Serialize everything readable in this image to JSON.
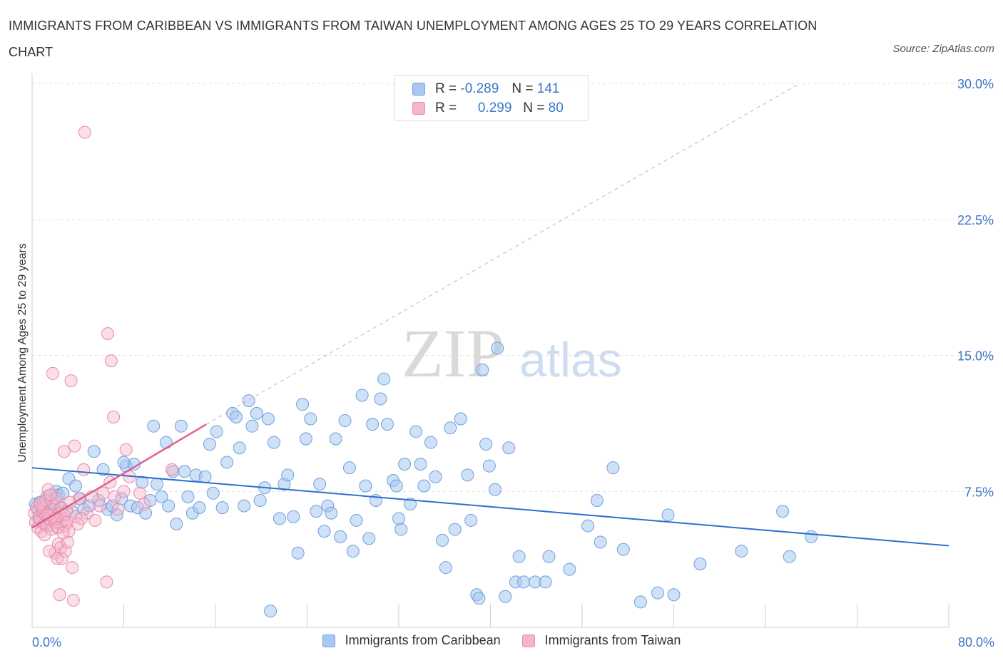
{
  "title": "IMMIGRANTS FROM CARIBBEAN VS IMMIGRANTS FROM TAIWAN UNEMPLOYMENT AMONG AGES 25 TO 29 YEARS CORRELATION CHART",
  "source": "Source: ZipAtlas.com",
  "watermark": {
    "zip": "ZIP",
    "atlas": "atlas"
  },
  "legend_top": [
    {
      "r_label": "R =",
      "r_value": "-0.289",
      "n_label": "N =",
      "n_value": "141"
    },
    {
      "r_label": "R =",
      "r_value": "0.299",
      "n_label": "N =",
      "n_value": "80"
    }
  ],
  "legend_bottom": [
    "Immigrants from Caribbean",
    "Immigrants from Taiwan"
  ],
  "colors": {
    "blue_fill": "#a8c8f0",
    "blue_stroke": "#6f9fdc",
    "blue_line": "#2c6fcf",
    "pink_fill": "#f5b6cb",
    "pink_stroke": "#e88aa8",
    "pink_line": "#e0608c",
    "tick_text": "#3b76c9"
  },
  "chart_data": {
    "type": "scatter",
    "title": "IMMIGRANTS FROM CARIBBEAN VS IMMIGRANTS FROM TAIWAN UNEMPLOYMENT AMONG AGES 25 TO 29 YEARS CORRELATION CHART",
    "xlabel": "",
    "ylabel": "Unemployment Among Ages 25 to 29 years",
    "xlim": [
      0,
      80
    ],
    "ylim": [
      0,
      30
    ],
    "x_tick_labels": [
      "0.0%",
      "80.0%"
    ],
    "y_tick_labels": [
      "7.5%",
      "15.0%",
      "22.5%",
      "30.0%"
    ],
    "y_ticks": [
      7.5,
      15.0,
      22.5,
      30.0
    ],
    "grid": true,
    "series": [
      {
        "name": "Immigrants from Caribbean",
        "r": -0.289,
        "n": 141,
        "trend": {
          "x": [
            0,
            80
          ],
          "y": [
            8.8,
            4.5
          ]
        },
        "points": [
          [
            0.3,
            6.8
          ],
          [
            0.5,
            6.5
          ],
          [
            0.7,
            6.9
          ],
          [
            0.9,
            6.2
          ],
          [
            1.1,
            6.6
          ],
          [
            1.3,
            7.2
          ],
          [
            1.5,
            6.4
          ],
          [
            1.7,
            6.9
          ],
          [
            1.9,
            6.7
          ],
          [
            2.1,
            7.5
          ],
          [
            2.3,
            7.3
          ],
          [
            2.5,
            6.6
          ],
          [
            2.7,
            7.4
          ],
          [
            3.2,
            8.2
          ],
          [
            3.5,
            6.4
          ],
          [
            3.8,
            7.8
          ],
          [
            4.2,
            7.1
          ],
          [
            4.5,
            6.5
          ],
          [
            5.0,
            6.7
          ],
          [
            5.4,
            9.7
          ],
          [
            5.8,
            7.0
          ],
          [
            6.2,
            8.7
          ],
          [
            6.6,
            6.5
          ],
          [
            7.0,
            6.7
          ],
          [
            7.4,
            6.2
          ],
          [
            7.8,
            7.1
          ],
          [
            8.2,
            8.9
          ],
          [
            8.6,
            6.7
          ],
          [
            8.9,
            9.0
          ],
          [
            9.2,
            6.6
          ],
          [
            9.6,
            8.0
          ],
          [
            9.9,
            6.3
          ],
          [
            10.3,
            7.0
          ],
          [
            10.6,
            11.1
          ],
          [
            10.9,
            7.9
          ],
          [
            11.3,
            7.2
          ],
          [
            11.7,
            10.2
          ],
          [
            11.9,
            6.7
          ],
          [
            12.3,
            8.6
          ],
          [
            12.6,
            5.7
          ],
          [
            13.0,
            11.1
          ],
          [
            13.3,
            8.6
          ],
          [
            13.6,
            7.2
          ],
          [
            14.0,
            6.3
          ],
          [
            14.3,
            8.4
          ],
          [
            14.6,
            6.6
          ],
          [
            15.1,
            8.3
          ],
          [
            15.5,
            10.1
          ],
          [
            15.8,
            7.4
          ],
          [
            16.1,
            10.8
          ],
          [
            16.6,
            6.6
          ],
          [
            17.0,
            9.1
          ],
          [
            17.5,
            11.8
          ],
          [
            17.8,
            11.6
          ],
          [
            18.1,
            9.9
          ],
          [
            18.5,
            6.7
          ],
          [
            18.9,
            12.5
          ],
          [
            19.2,
            11.1
          ],
          [
            19.6,
            11.8
          ],
          [
            19.9,
            7.0
          ],
          [
            20.3,
            7.7
          ],
          [
            20.6,
            11.5
          ],
          [
            21.1,
            10.2
          ],
          [
            21.6,
            6.0
          ],
          [
            22.0,
            7.9
          ],
          [
            22.3,
            8.4
          ],
          [
            22.8,
            6.1
          ],
          [
            23.2,
            4.1
          ],
          [
            23.6,
            12.3
          ],
          [
            23.9,
            10.4
          ],
          [
            24.3,
            11.5
          ],
          [
            24.8,
            6.4
          ],
          [
            25.1,
            7.9
          ],
          [
            25.5,
            5.3
          ],
          [
            25.8,
            6.7
          ],
          [
            26.1,
            6.3
          ],
          [
            26.5,
            10.4
          ],
          [
            26.9,
            5.0
          ],
          [
            27.3,
            11.4
          ],
          [
            27.7,
            8.8
          ],
          [
            28.0,
            4.2
          ],
          [
            28.3,
            5.9
          ],
          [
            28.8,
            12.8
          ],
          [
            29.1,
            7.8
          ],
          [
            29.4,
            4.9
          ],
          [
            29.7,
            11.2
          ],
          [
            30.0,
            7.0
          ],
          [
            30.4,
            12.6
          ],
          [
            30.7,
            13.7
          ],
          [
            31.0,
            11.2
          ],
          [
            31.5,
            8.1
          ],
          [
            31.8,
            7.8
          ],
          [
            32.2,
            5.4
          ],
          [
            32.5,
            9.0
          ],
          [
            33.0,
            6.8
          ],
          [
            33.5,
            10.8
          ],
          [
            33.9,
            9.0
          ],
          [
            34.2,
            7.8
          ],
          [
            34.8,
            10.2
          ],
          [
            35.2,
            8.3
          ],
          [
            35.8,
            4.8
          ],
          [
            36.1,
            3.3
          ],
          [
            36.5,
            11.0
          ],
          [
            36.9,
            5.4
          ],
          [
            37.4,
            11.5
          ],
          [
            38.0,
            8.4
          ],
          [
            38.3,
            5.9
          ],
          [
            38.8,
            1.8
          ],
          [
            39.0,
            1.6
          ],
          [
            39.3,
            14.2
          ],
          [
            39.6,
            10.1
          ],
          [
            39.9,
            8.9
          ],
          [
            40.4,
            7.6
          ],
          [
            40.6,
            15.4
          ],
          [
            41.3,
            1.7
          ],
          [
            41.6,
            9.9
          ],
          [
            42.2,
            2.5
          ],
          [
            42.5,
            3.9
          ],
          [
            42.9,
            2.5
          ],
          [
            43.9,
            2.5
          ],
          [
            44.8,
            2.5
          ],
          [
            45.1,
            3.9
          ],
          [
            46.9,
            3.2
          ],
          [
            48.5,
            5.6
          ],
          [
            49.3,
            7.0
          ],
          [
            49.6,
            4.7
          ],
          [
            50.7,
            8.8
          ],
          [
            51.6,
            4.3
          ],
          [
            53.1,
            1.4
          ],
          [
            54.6,
            1.9
          ],
          [
            55.5,
            6.2
          ],
          [
            56.0,
            1.8
          ],
          [
            58.3,
            3.5
          ],
          [
            61.9,
            4.2
          ],
          [
            65.5,
            6.4
          ],
          [
            66.1,
            3.9
          ],
          [
            68.0,
            5.0
          ],
          [
            0.6,
            6.0
          ],
          [
            1.0,
            5.8
          ],
          [
            1.6,
            6.3
          ],
          [
            2.0,
            5.9
          ],
          [
            8.0,
            9.1
          ],
          [
            20.8,
            0.9
          ],
          [
            32.0,
            6.0
          ]
        ]
      },
      {
        "name": "Immigrants from Taiwan",
        "r": 0.299,
        "n": 80,
        "trend": {
          "x": [
            0,
            15.2
          ],
          "y": [
            5.5,
            11.2
          ],
          "extrapolated_to": [
            67.0,
            30.0
          ]
        },
        "points": [
          [
            0.2,
            6.3
          ],
          [
            0.3,
            5.8
          ],
          [
            0.4,
            6.6
          ],
          [
            0.5,
            5.5
          ],
          [
            0.6,
            6.1
          ],
          [
            0.7,
            5.9
          ],
          [
            0.8,
            5.3
          ],
          [
            0.9,
            6.4
          ],
          [
            1.0,
            6.9
          ],
          [
            1.1,
            5.7
          ],
          [
            1.2,
            6.2
          ],
          [
            1.3,
            5.6
          ],
          [
            1.4,
            7.6
          ],
          [
            1.5,
            6.0
          ],
          [
            1.6,
            5.9
          ],
          [
            1.7,
            5.4
          ],
          [
            1.8,
            6.5
          ],
          [
            1.9,
            6.8
          ],
          [
            2.0,
            5.8
          ],
          [
            2.1,
            7.1
          ],
          [
            2.2,
            6.0
          ],
          [
            2.3,
            5.5
          ],
          [
            2.4,
            6.3
          ],
          [
            2.5,
            5.7
          ],
          [
            2.6,
            6.6
          ],
          [
            2.7,
            5.9
          ],
          [
            2.8,
            6.2
          ],
          [
            2.9,
            5.6
          ],
          [
            3.0,
            6.4
          ],
          [
            3.1,
            5.8
          ],
          [
            1.8,
            14.0
          ],
          [
            3.4,
            13.6
          ],
          [
            2.8,
            9.7
          ],
          [
            3.7,
            10.0
          ],
          [
            4.5,
            8.7
          ],
          [
            4.6,
            27.3
          ],
          [
            6.6,
            16.2
          ],
          [
            6.9,
            14.7
          ],
          [
            7.1,
            11.6
          ],
          [
            8.2,
            9.8
          ],
          [
            6.2,
            7.4
          ],
          [
            6.8,
            8.0
          ],
          [
            7.2,
            7.2
          ],
          [
            7.5,
            6.5
          ],
          [
            8.0,
            7.5
          ],
          [
            8.5,
            8.3
          ],
          [
            9.4,
            7.4
          ],
          [
            9.8,
            6.8
          ],
          [
            12.2,
            8.7
          ],
          [
            2.0,
            4.1
          ],
          [
            2.3,
            4.6
          ],
          [
            2.5,
            4.4
          ],
          [
            2.2,
            3.8
          ],
          [
            2.6,
            3.8
          ],
          [
            2.9,
            4.2
          ],
          [
            3.2,
            5.3
          ],
          [
            3.5,
            3.3
          ],
          [
            3.1,
            4.7
          ],
          [
            2.4,
            1.8
          ],
          [
            3.6,
            1.5
          ],
          [
            6.5,
            2.5
          ],
          [
            1.5,
            4.2
          ],
          [
            4.1,
            7.1
          ],
          [
            4.8,
            6.3
          ],
          [
            5.2,
            7.2
          ],
          [
            5.5,
            5.9
          ],
          [
            5.9,
            6.7
          ],
          [
            3.8,
            6.1
          ],
          [
            4.3,
            6.0
          ],
          [
            1.1,
            5.1
          ],
          [
            0.9,
            6.6
          ],
          [
            1.2,
            7.0
          ],
          [
            1.4,
            6.2
          ],
          [
            2.0,
            6.0
          ],
          [
            2.2,
            5.5
          ],
          [
            0.7,
            6.8
          ],
          [
            1.6,
            7.3
          ],
          [
            2.7,
            5.2
          ],
          [
            3.3,
            6.9
          ],
          [
            4.0,
            5.7
          ]
        ]
      }
    ]
  }
}
